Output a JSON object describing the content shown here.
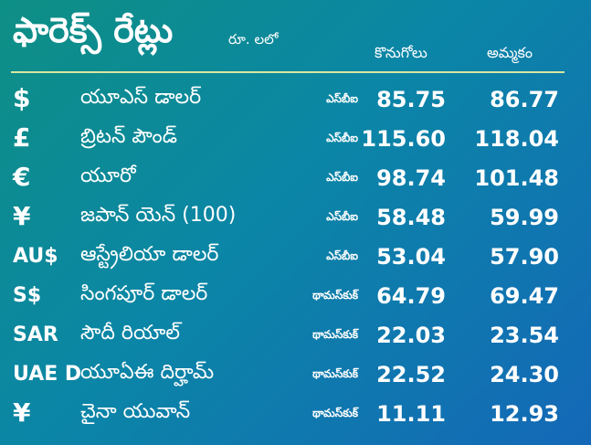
{
  "header": {
    "title": "ఫారెక్స్ రేట్లు",
    "unit": "రూ. లలో",
    "col_buy": "కొనుగోలు",
    "col_sell": "అమ్మకం"
  },
  "rows": [
    {
      "symbol": "$",
      "name": "యూఎస్ డాలర్",
      "source": "ఎస్‌బీఐ",
      "buy": "85.75",
      "sell": "86.77"
    },
    {
      "symbol": "£",
      "name": "బ్రిటన్ పౌండ్",
      "source": "ఎస్‌బీఐ",
      "buy": "115.60",
      "sell": "118.04"
    },
    {
      "symbol": "€",
      "name": "యూరో",
      "source": "ఎస్‌బీఐ",
      "buy": "98.74",
      "sell": "101.48"
    },
    {
      "symbol": "¥",
      "name": "జపాన్ యెన్ (100)",
      "source": "ఎస్‌బీఐ",
      "buy": "58.48",
      "sell": "59.99"
    },
    {
      "symbol": "AU$",
      "name": "ఆస్ట్రేలియా డాలర్",
      "source": "ఎస్‌బీఐ",
      "buy": "53.04",
      "sell": "57.90"
    },
    {
      "symbol": "S$",
      "name": "సింగపూర్ డాలర్",
      "source": "థామస్‌కుక్",
      "buy": "64.79",
      "sell": "69.47"
    },
    {
      "symbol": "SAR",
      "name": "సౌదీ రియాల్",
      "source": "థామస్‌కుక్",
      "buy": "22.03",
      "sell": "23.54"
    },
    {
      "symbol": "UAE D",
      "name": "యూఏఈ దిర్హామ్",
      "source": "థామస్‌కుక్",
      "buy": "22.52",
      "sell": "24.30"
    },
    {
      "symbol": "¥",
      "name": "చైనా యువాన్",
      "source": "థామస్‌కుక్",
      "buy": "11.11",
      "sell": "12.93"
    }
  ]
}
